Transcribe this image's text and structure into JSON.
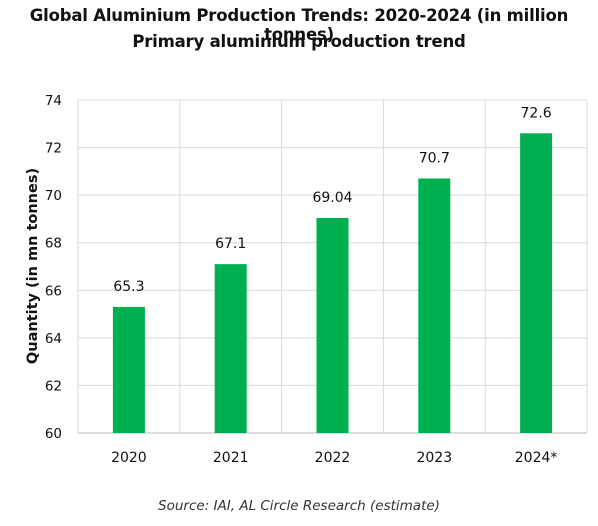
{
  "chart_data": {
    "type": "bar",
    "title": "Global Aluminium Production Trends: 2020-2024 (in million tonnes)",
    "subtitle": "Primary aluminium production trend",
    "xlabel": "",
    "ylabel": "Quantity (in mn tonnes)",
    "categories": [
      "2020",
      "2021",
      "2022",
      "2023",
      "2024*"
    ],
    "values": [
      65.3,
      67.1,
      69.04,
      70.7,
      72.6
    ],
    "value_labels": [
      "65.3",
      "67.1",
      "69.04",
      "70.7",
      "72.6"
    ],
    "ylim": [
      60,
      74
    ],
    "yticks": [
      60,
      62,
      64,
      66,
      68,
      70,
      72,
      74
    ],
    "grid": true,
    "bar_color": "#00b050",
    "source": "Source: IAI, AL Circle Research (estimate)"
  }
}
